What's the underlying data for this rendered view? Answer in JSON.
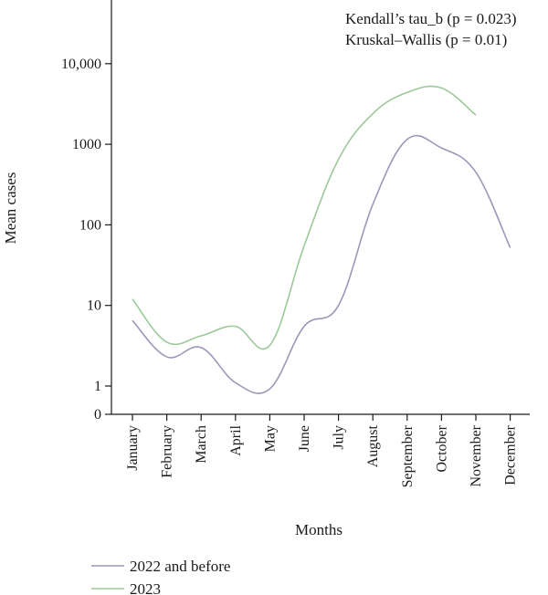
{
  "chart_data": {
    "type": "line",
    "yscale": "log",
    "xlabel": "Months",
    "ylabel": "Mean cases",
    "categories": [
      "January",
      "February",
      "March",
      "April",
      "May",
      "June",
      "July",
      "August",
      "September",
      "October",
      "November",
      "December"
    ],
    "yticks": [
      {
        "value": 0,
        "label": "0"
      },
      {
        "value": 1,
        "label": "1"
      },
      {
        "value": 10,
        "label": "10"
      },
      {
        "value": 100,
        "label": "100"
      },
      {
        "value": 1000,
        "label": "1000"
      },
      {
        "value": 10000,
        "label": "10,000"
      }
    ],
    "series": [
      {
        "name": "2022 and before",
        "color": "#9a98b8",
        "values": [
          6.5,
          2.3,
          3.0,
          1.1,
          0.9,
          5.5,
          10,
          180,
          1150,
          900,
          450,
          52
        ]
      },
      {
        "name": "2023",
        "color": "#9cc99a",
        "values": [
          12,
          3.5,
          4.2,
          5.5,
          3.2,
          55,
          650,
          2400,
          4400,
          5000,
          2300,
          null
        ]
      }
    ],
    "annotations": [
      "Kendall’s tau_b (p = 0.023)",
      "Kruskal–Wallis (p = 0.01)"
    ],
    "legend_position": "bottom-left"
  }
}
